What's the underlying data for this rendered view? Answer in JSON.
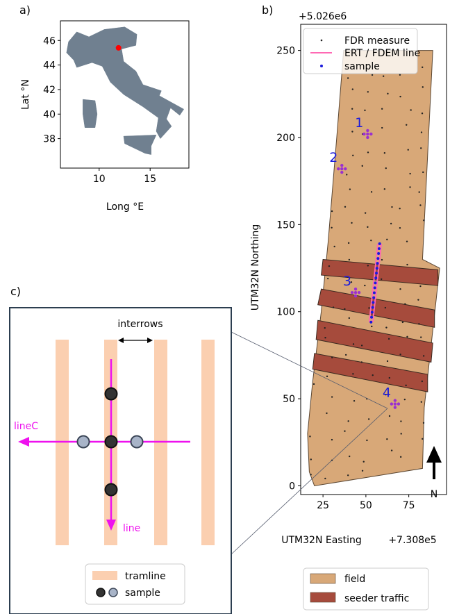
{
  "panels": {
    "a": "a)",
    "b": "b)",
    "c": "c)"
  },
  "colors": {
    "land": "#708090",
    "location_dot": "#ff0000",
    "field": "#d8a878",
    "field_edge": "#5a4632",
    "seeder": "#a64b3c",
    "fdr_dot": "#222222",
    "ert_line": "#ff69b4",
    "sample_dot": "#1a1adb",
    "sample_cross": "#9b30d0",
    "sample_label": "#1a1adb",
    "tramline": "#fbcfb0",
    "line_magenta": "#ee11ee",
    "sample_dark": "#333333",
    "sample_light": "#a8b4c8",
    "north_arrow": "#000000"
  },
  "chart_data": [
    {
      "type": "scatter",
      "panel": "a",
      "xlabel": "Long °E",
      "ylabel": "Lat °N",
      "xlim": [
        6.2,
        18.8
      ],
      "ylim": [
        35.6,
        47.6
      ],
      "xticks": [
        10,
        15
      ],
      "yticks": [
        38,
        40,
        42,
        44,
        46
      ],
      "series": [
        {
          "x": [
            11.9
          ],
          "y": [
            45.4
          ]
        }
      ],
      "regions": {
        "mainland": [
          [
            7.0,
            45.9
          ],
          [
            7.8,
            46.7
          ],
          [
            9.0,
            46.3
          ],
          [
            10.5,
            46.9
          ],
          [
            12.5,
            47.1
          ],
          [
            13.7,
            46.5
          ],
          [
            13.6,
            45.6
          ],
          [
            12.2,
            45.3
          ],
          [
            12.4,
            44.3
          ],
          [
            13.6,
            43.5
          ],
          [
            14.3,
            42.4
          ],
          [
            16.1,
            41.9
          ],
          [
            15.9,
            41.5
          ],
          [
            18.3,
            40.4
          ],
          [
            17.9,
            39.9
          ],
          [
            17.0,
            40.5
          ],
          [
            16.6,
            39.6
          ],
          [
            17.1,
            39.0
          ],
          [
            16.0,
            38.0
          ],
          [
            15.6,
            38.6
          ],
          [
            15.8,
            39.7
          ],
          [
            14.3,
            40.6
          ],
          [
            12.4,
            41.6
          ],
          [
            11.1,
            42.6
          ],
          [
            10.3,
            43.9
          ],
          [
            9.3,
            44.2
          ],
          [
            7.8,
            43.8
          ],
          [
            7.5,
            44.4
          ],
          [
            6.8,
            45.0
          ]
        ],
        "sardinia": [
          [
            8.4,
            41.2
          ],
          [
            9.6,
            41.1
          ],
          [
            9.8,
            40.0
          ],
          [
            9.6,
            38.9
          ],
          [
            8.6,
            38.9
          ],
          [
            8.4,
            40.0
          ]
        ],
        "sicily": [
          [
            12.4,
            38.2
          ],
          [
            15.6,
            38.3
          ],
          [
            15.1,
            37.4
          ],
          [
            15.1,
            36.7
          ],
          [
            14.5,
            36.8
          ],
          [
            12.5,
            37.6
          ]
        ]
      }
    },
    {
      "type": "scatter",
      "panel": "b",
      "xlabel": "UTM32N Easting",
      "ylabel": "UTM32N Northing",
      "x_offset": "+7.308e5",
      "y_offset": "+5.026e6",
      "xlim": [
        12,
        97
      ],
      "ylim": [
        -5,
        265
      ],
      "xticks": [
        25,
        50,
        75
      ],
      "yticks": [
        0,
        50,
        100,
        150,
        200,
        250
      ],
      "legend": [
        "FDR measure",
        "ERT / FDEM line",
        "sample"
      ],
      "legend_placement": "top-left",
      "legend2": [
        "field",
        "seeder traffic"
      ],
      "legend2_placement": "below",
      "field_polygon": [
        [
          20,
          0
        ],
        [
          17,
          8
        ],
        [
          16,
          30
        ],
        [
          19,
          60
        ],
        [
          24,
          100
        ],
        [
          28,
          140
        ],
        [
          33,
          200
        ],
        [
          37,
          250
        ],
        [
          89,
          250
        ],
        [
          83,
          130
        ],
        [
          93,
          125
        ],
        [
          84,
          45
        ],
        [
          83,
          10
        ]
      ],
      "seeder_strips": [
        {
          "polygon": [
            [
              25,
              130
            ],
            [
              92,
              124
            ],
            [
              92,
              115
            ],
            [
              24,
              121
            ]
          ]
        },
        {
          "polygon": [
            [
              24,
              113
            ],
            [
              90,
              101
            ],
            [
              90,
              91
            ],
            [
              22,
              104
            ]
          ]
        },
        {
          "polygon": [
            [
              22,
              95
            ],
            [
              89,
              82
            ],
            [
              88,
              71
            ],
            [
              21,
              84
            ]
          ]
        },
        {
          "polygon": [
            [
              20,
              76
            ],
            [
              86,
              64
            ],
            [
              86,
              54
            ],
            [
              19,
              67
            ]
          ]
        }
      ],
      "ert_lines": [
        {
          "x": [
            52,
            57
          ],
          "y": [
            94,
            139
          ]
        },
        {
          "x": [
            54,
            59
          ],
          "y": [
            94,
            139
          ]
        }
      ],
      "samples": [
        {
          "label": "1",
          "x": 51,
          "y": 202
        },
        {
          "label": "2",
          "x": 36,
          "y": 182
        },
        {
          "label": "3",
          "x": 44,
          "y": 111
        },
        {
          "label": "4",
          "x": 67,
          "y": 47
        }
      ],
      "north_label": "N"
    }
  ],
  "schematic": {
    "interrows_label": "interrows",
    "line_label": "line",
    "linec_label": "lineC",
    "legend_tramline": "tramline",
    "legend_sample": "sample"
  }
}
